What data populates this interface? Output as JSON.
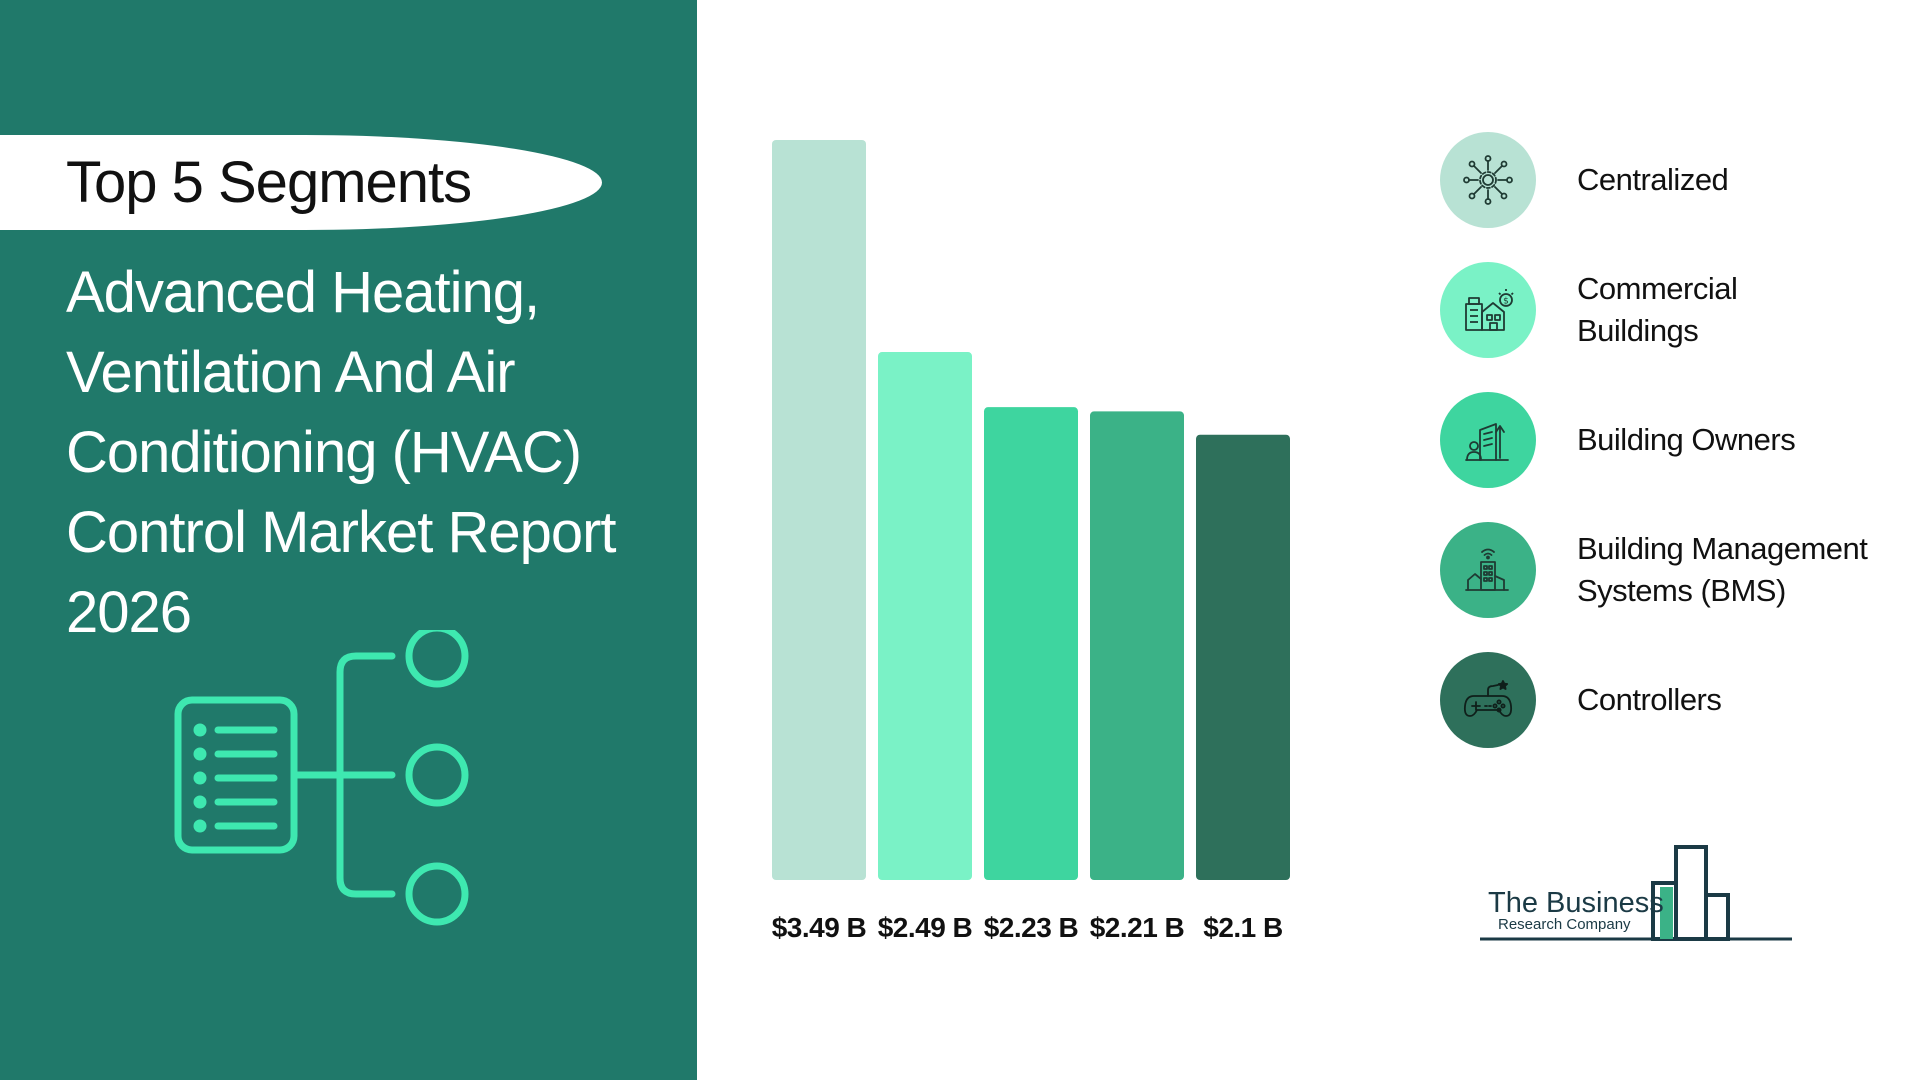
{
  "left": {
    "pill_text": "Top 5 Segments",
    "title_lines": [
      "Advanced Heating,",
      "Ventilation And Air",
      "Conditioning (HVAC)",
      "Control Market Report",
      "2026"
    ]
  },
  "colors": {
    "panel_bg": "#20796a",
    "accent": "#3ee8b0",
    "bars": [
      "#b8e2d4",
      "#7af2c6",
      "#3ed59f",
      "#3bb287",
      "#2e705b"
    ]
  },
  "chart_data": {
    "type": "bar",
    "categories": [
      "Centralized",
      "Commercial Buildings",
      "Building Owners",
      "Building Management Systems (BMS)",
      "Controllers"
    ],
    "values": [
      3.49,
      2.49,
      2.23,
      2.21,
      2.1
    ],
    "value_labels": [
      "$3.49 B",
      "$2.49 B",
      "$2.23 B",
      "$2.21 B",
      "$2.1 B"
    ],
    "title": "",
    "xlabel": "",
    "ylabel": "",
    "ylim": [
      0,
      3.49
    ],
    "grid": false,
    "legend": "right"
  },
  "legend": {
    "items": [
      {
        "label_lines": [
          "Centralized"
        ],
        "icon": "network-gear-icon"
      },
      {
        "label_lines": [
          "Commercial",
          "Buildings"
        ],
        "icon": "commercial-buildings-icon"
      },
      {
        "label_lines": [
          "Building Owners"
        ],
        "icon": "building-owner-icon"
      },
      {
        "label_lines": [
          "Building Management",
          "Systems (BMS)"
        ],
        "icon": "smart-building-icon"
      },
      {
        "label_lines": [
          "Controllers"
        ],
        "icon": "gamepad-icon"
      }
    ]
  },
  "logo": {
    "line1": "The Business",
    "line2": "Research Company"
  }
}
